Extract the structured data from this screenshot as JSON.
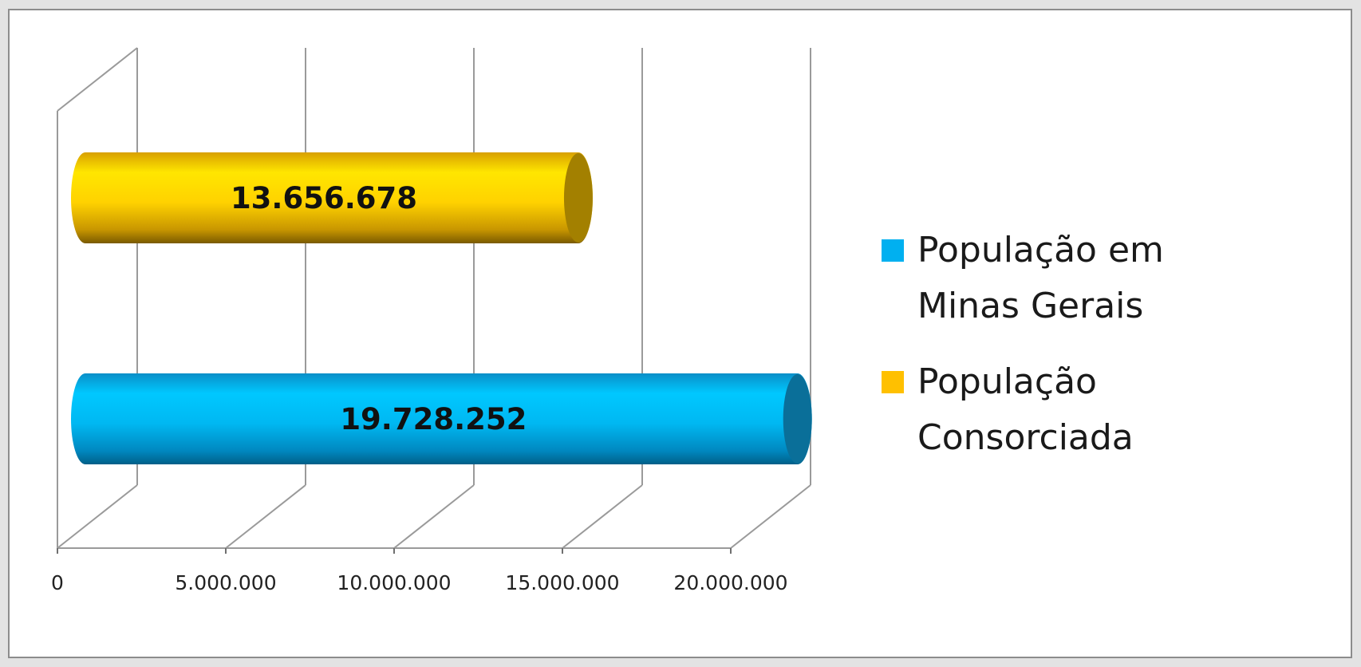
{
  "chart_data": {
    "type": "bar",
    "orientation": "horizontal",
    "style": "3d-cylinder",
    "categories": [
      "População em Minas Gerais",
      "População Consorciada"
    ],
    "series": [
      {
        "name": "População em Minas Gerais",
        "value": 19728252,
        "label": "19.728.252",
        "color": "#00b0f0"
      },
      {
        "name": "População Consorciada",
        "value": 13656678,
        "label": "13.656.678",
        "color": "#ffc000"
      }
    ],
    "xlim": [
      0,
      20000000
    ],
    "x_ticks": [
      0,
      5000000,
      10000000,
      15000000,
      20000000
    ],
    "x_tick_labels": [
      "0",
      "5.000.000",
      "10.000.000",
      "15.000.000",
      "20.000.000"
    ],
    "grid": true,
    "legend_position": "right",
    "title": "",
    "xlabel": "",
    "ylabel": ""
  }
}
